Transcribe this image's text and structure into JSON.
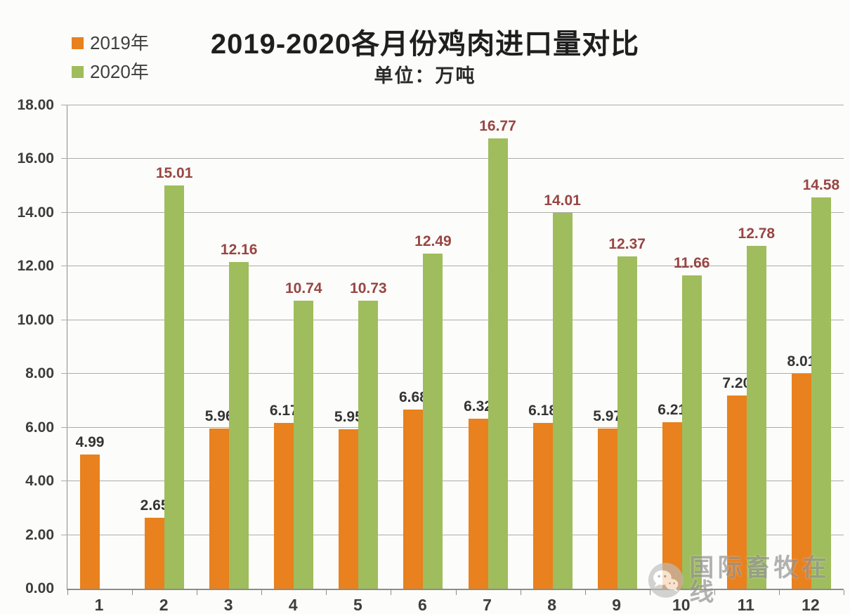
{
  "header": {
    "title": "2019-2020各月份鸡肉进口量对比",
    "subtitle": "单位：万吨"
  },
  "legend": {
    "position": "top-left",
    "items": [
      {
        "label": "2019年",
        "color": "#E8811E"
      },
      {
        "label": "2020年",
        "color": "#9FBD5C"
      }
    ]
  },
  "chart_data": {
    "type": "bar",
    "title": "2019-2020各月份鸡肉进口量对比",
    "subtitle": "单位：万吨",
    "unit": "万吨",
    "categories": [
      "1",
      "2",
      "3",
      "4",
      "5",
      "6",
      "7",
      "8",
      "9",
      "10",
      "11",
      "12"
    ],
    "series": [
      {
        "name": "2019年",
        "color": "#E8811E",
        "label_color": "#343434",
        "values": [
          4.99,
          2.65,
          5.96,
          6.17,
          5.95,
          6.68,
          6.32,
          6.18,
          5.97,
          6.21,
          7.2,
          8.01
        ]
      },
      {
        "name": "2020年",
        "color": "#9FBD5C",
        "label_color": "#974643",
        "values": [
          null,
          15.01,
          12.16,
          10.74,
          10.73,
          12.49,
          16.77,
          14.01,
          12.37,
          11.66,
          12.78,
          14.58
        ]
      }
    ],
    "ylim": [
      0,
      18
    ],
    "ytick_step": 2,
    "yticks": [
      "0.00",
      "2.00",
      "4.00",
      "6.00",
      "8.00",
      "10.00",
      "12.00",
      "14.00",
      "16.00",
      "18.00"
    ],
    "grid": "horizontal",
    "legend_position": "top-left",
    "value_label_decimals": 2
  },
  "watermark": {
    "text": "国际畜牧在线",
    "icon": "wechat-logo-icon"
  },
  "colors": {
    "background": "#FCFCFA",
    "gridline": "#ACACAC",
    "axis": "#8C8C8C",
    "tick_label": "#3D3D3D",
    "title": "#1F1F1F"
  }
}
